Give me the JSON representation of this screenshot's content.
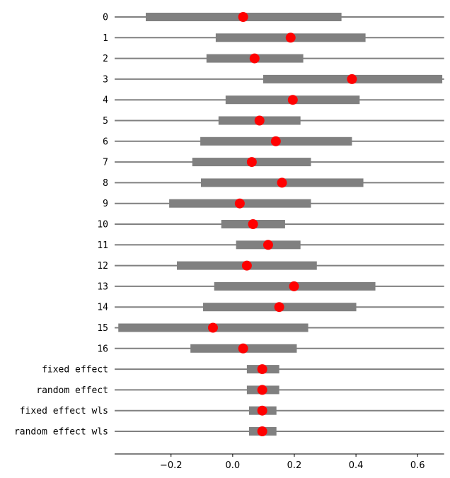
{
  "chart_data": {
    "type": "forest",
    "title": "",
    "xlabel": "",
    "ylabel": "",
    "xlim": [
      -0.383,
      0.686
    ],
    "xticks": [
      -0.2,
      0.0,
      0.2,
      0.4,
      0.6
    ],
    "xtick_labels": [
      "−0.2",
      "0.0",
      "0.2",
      "0.4",
      "0.6"
    ],
    "grid": false,
    "colors": {
      "interval": "#808080",
      "row_line": "#808080",
      "point": "#ff0000"
    },
    "rows": [
      {
        "label": "0",
        "estimate": 0.034,
        "lower": -0.282,
        "upper": 0.353
      },
      {
        "label": "1",
        "estimate": 0.188,
        "lower": -0.055,
        "upper": 0.431
      },
      {
        "label": "2",
        "estimate": 0.071,
        "lower": -0.085,
        "upper": 0.229
      },
      {
        "label": "3",
        "estimate": 0.387,
        "lower": 0.099,
        "upper": 0.68
      },
      {
        "label": "4",
        "estimate": 0.195,
        "lower": -0.023,
        "upper": 0.412
      },
      {
        "label": "5",
        "estimate": 0.087,
        "lower": -0.046,
        "upper": 0.22
      },
      {
        "label": "6",
        "estimate": 0.14,
        "lower": -0.105,
        "upper": 0.387
      },
      {
        "label": "7",
        "estimate": 0.062,
        "lower": -0.131,
        "upper": 0.254
      },
      {
        "label": "8",
        "estimate": 0.16,
        "lower": -0.103,
        "upper": 0.424
      },
      {
        "label": "9",
        "estimate": 0.023,
        "lower": -0.206,
        "upper": 0.254
      },
      {
        "label": "10",
        "estimate": 0.066,
        "lower": -0.037,
        "upper": 0.17
      },
      {
        "label": "11",
        "estimate": 0.115,
        "lower": 0.011,
        "upper": 0.22
      },
      {
        "label": "12",
        "estimate": 0.046,
        "lower": -0.181,
        "upper": 0.273
      },
      {
        "label": "13",
        "estimate": 0.199,
        "lower": -0.06,
        "upper": 0.463
      },
      {
        "label": "14",
        "estimate": 0.151,
        "lower": -0.096,
        "upper": 0.401
      },
      {
        "label": "15",
        "estimate": -0.064,
        "lower": -0.371,
        "upper": 0.245
      },
      {
        "label": "16",
        "estimate": 0.034,
        "lower": -0.137,
        "upper": 0.208
      },
      {
        "label": "fixed effect",
        "estimate": 0.096,
        "lower": 0.046,
        "upper": 0.151
      },
      {
        "label": "random effect",
        "estimate": 0.096,
        "lower": 0.046,
        "upper": 0.151
      },
      {
        "label": "fixed effect wls",
        "estimate": 0.096,
        "lower": 0.053,
        "upper": 0.142
      },
      {
        "label": "random effect wls",
        "estimate": 0.096,
        "lower": 0.053,
        "upper": 0.142
      }
    ]
  }
}
